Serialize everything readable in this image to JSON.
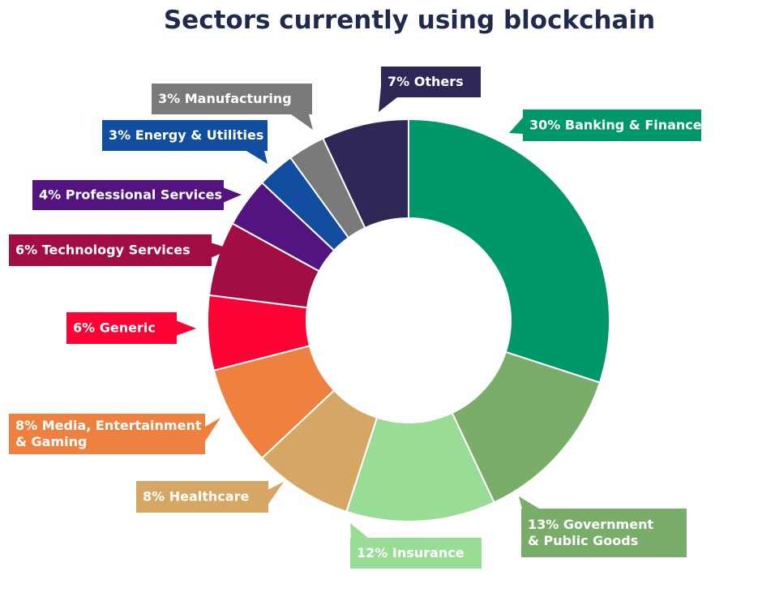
{
  "chart_data": {
    "type": "pie",
    "variant": "donut",
    "title": "Sectors currently using blockchain",
    "legend": "none",
    "slices": [
      {
        "label_lines": [
          "30% Banking & Finance"
        ],
        "value": 30,
        "color": "#00986a"
      },
      {
        "label_lines": [
          "13% Government",
          "& Public Goods"
        ],
        "value": 13,
        "color": "#7aad6a"
      },
      {
        "label_lines": [
          "12% Insurance"
        ],
        "value": 12,
        "color": "#98dc96"
      },
      {
        "label_lines": [
          "8% Healthcare"
        ],
        "value": 8,
        "color": "#d6a764"
      },
      {
        "label_lines": [
          "8% Media, Entertainment",
          "& Gaming"
        ],
        "value": 8,
        "color": "#ee8040"
      },
      {
        "label_lines": [
          "6% Generic"
        ],
        "value": 6,
        "color": "#fc0235"
      },
      {
        "label_lines": [
          "6% Technology Services"
        ],
        "value": 6,
        "color": "#a20e44"
      },
      {
        "label_lines": [
          "4% Professional Services"
        ],
        "value": 4,
        "color": "#531480"
      },
      {
        "label_lines": [
          "3% Energy & Utilities"
        ],
        "value": 3,
        "color": "#114ea0"
      },
      {
        "label_lines": [
          "3% Manufacturing"
        ],
        "value": 3,
        "color": "#7a7a7a"
      },
      {
        "label_lines": [
          "7% Others"
        ],
        "value": 7,
        "color": "#2e2856"
      }
    ]
  }
}
